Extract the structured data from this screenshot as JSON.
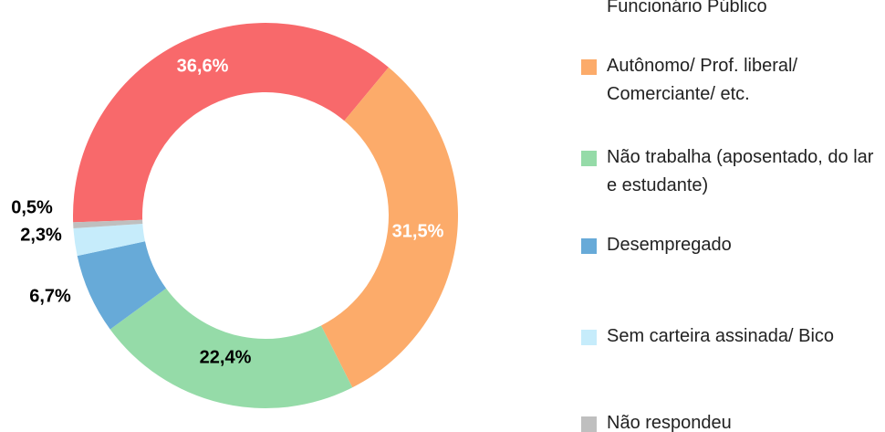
{
  "chart_data": {
    "type": "donut",
    "series": [
      {
        "name": "Funcionário Público",
        "color": "#f8696b",
        "values": [
          36.6
        ],
        "value_labels": [
          "36,6%"
        ]
      },
      {
        "name": "Autônomo/ Prof. liberal/ Comerciante/ etc.",
        "color": "#fcab6a",
        "values": [
          31.5
        ],
        "value_labels": [
          "31,5%"
        ]
      },
      {
        "name": "Não trabalha (aposentado, do lar e estudante)",
        "color": "#95dba8",
        "values": [
          22.4
        ],
        "value_labels": [
          "22,4%"
        ]
      },
      {
        "name": "Desempregado",
        "color": "#67aad8",
        "values": [
          6.7
        ],
        "value_labels": [
          "6,7%"
        ]
      },
      {
        "name": "Sem carteira assinada/ Bico",
        "color": "#c6ecfb",
        "values": [
          2.3
        ],
        "value_labels": [
          "2,3%"
        ]
      },
      {
        "name": "Não respondeu",
        "color": "#bfbfbf",
        "values": [
          0.5
        ],
        "value_labels": [
          "0,5%"
        ]
      }
    ]
  }
}
